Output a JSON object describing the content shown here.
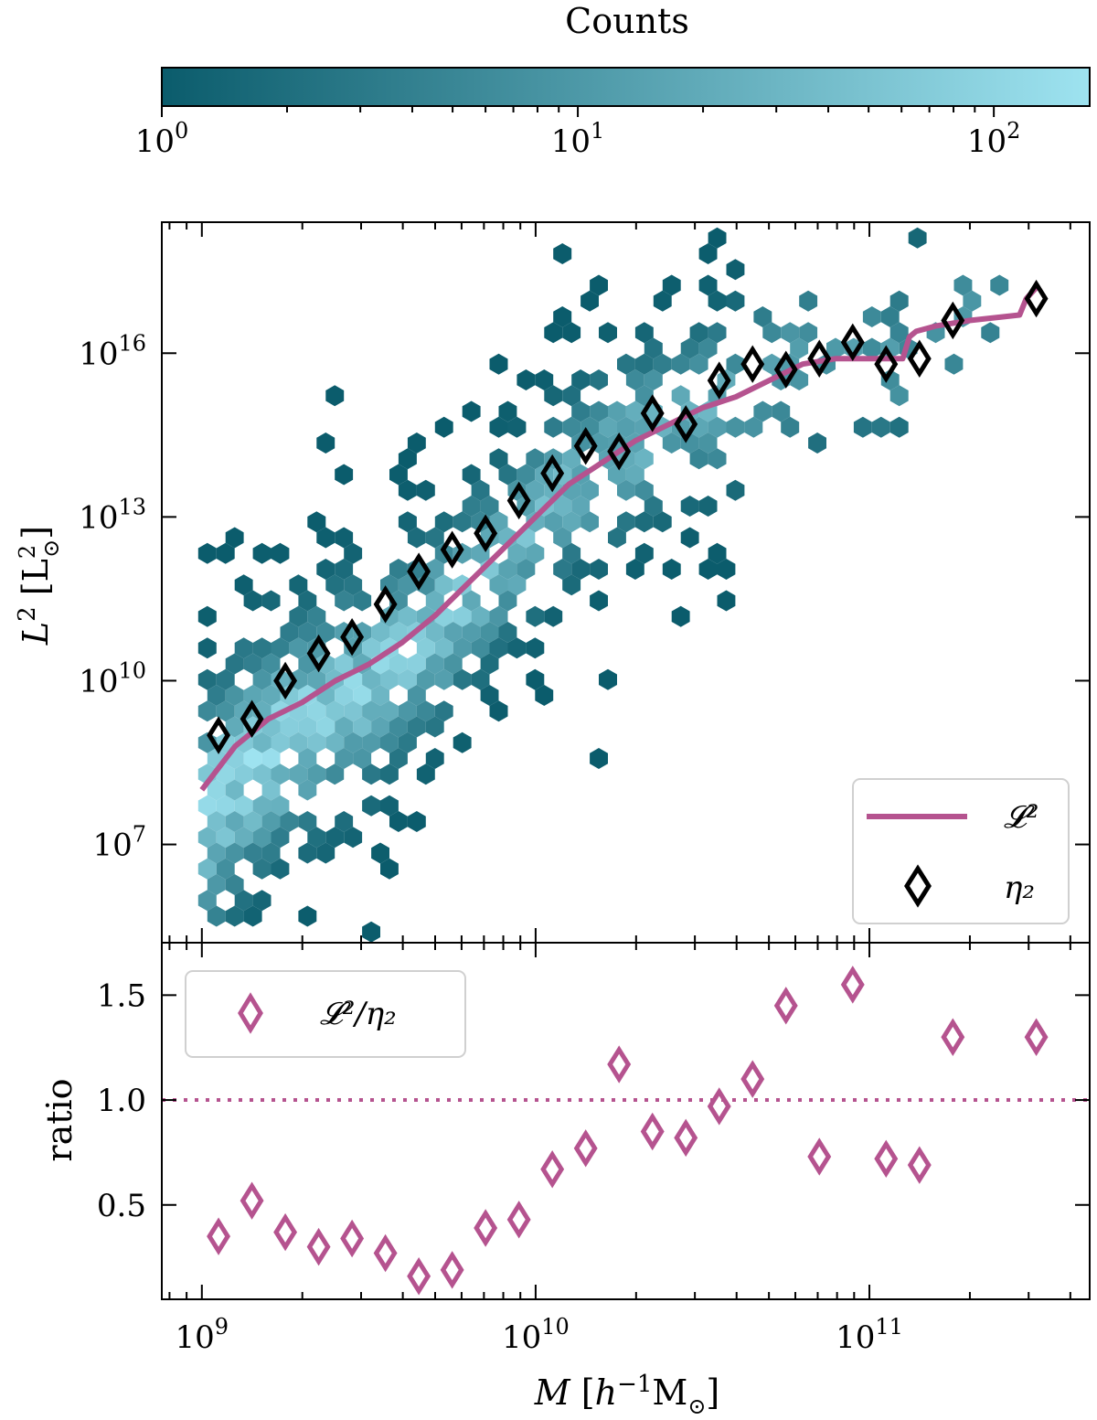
{
  "chart_data": [
    {
      "type": "colorbar",
      "title": "Counts",
      "scale": "log",
      "range": [
        1,
        170
      ],
      "colors": [
        "#0b5c6c",
        "#9ee3f0"
      ],
      "tick_labels": [
        "10^0",
        "10^1",
        "10^2"
      ],
      "tick_values": [
        1,
        10,
        100
      ]
    },
    {
      "type": "hexbin+line+scatter",
      "xlabel": "M [h^-1 M_sun]",
      "ylabel": "L^2 [L_sun^2]",
      "xscale": "log",
      "yscale": "log",
      "xlim_log10": [
        8.88,
        11.66
      ],
      "ylim_log10": [
        5.2,
        18.4
      ],
      "xtick_labels": [
        "10^9",
        "10^10",
        "10^11"
      ],
      "ytick_labels": [
        "10^7",
        "10^10",
        "10^13",
        "10^16"
      ],
      "ytick_values_log10": [
        7,
        10,
        13,
        16
      ],
      "legend": {
        "position": "lower right",
        "entries": [
          "𝓛²",
          "η₂"
        ]
      },
      "series": [
        {
          "name": "𝓛²",
          "kind": "line",
          "color": "#b5538f",
          "log10_x": [
            9.0,
            9.1,
            9.2,
            9.3,
            9.4,
            9.5,
            9.6,
            9.7,
            9.8,
            9.9,
            10.0,
            10.1,
            10.2,
            10.3,
            10.4,
            10.5,
            10.6,
            10.7,
            10.8,
            10.9,
            11.0,
            11.1,
            11.12,
            11.14,
            11.2,
            11.3,
            11.45,
            11.47,
            11.5
          ],
          "log10_y": [
            8.0,
            8.8,
            9.3,
            9.6,
            10.0,
            10.3,
            10.7,
            11.2,
            11.8,
            12.4,
            13.0,
            13.6,
            14.0,
            14.4,
            14.7,
            15.0,
            15.2,
            15.5,
            15.8,
            15.9,
            15.9,
            15.9,
            16.3,
            16.4,
            16.5,
            16.6,
            16.7,
            17.0,
            17.2
          ]
        },
        {
          "name": "η₂",
          "kind": "scatter",
          "marker": "diamond",
          "color": "#000000",
          "log10_x": [
            9.05,
            9.15,
            9.25,
            9.35,
            9.45,
            9.55,
            9.65,
            9.75,
            9.85,
            9.95,
            10.05,
            10.15,
            10.25,
            10.35,
            10.45,
            10.55,
            10.65,
            10.75,
            10.85,
            10.95,
            11.05,
            11.15,
            11.25,
            11.5
          ],
          "log10_y": [
            9.0,
            9.3,
            10.0,
            10.5,
            10.8,
            11.4,
            12.0,
            12.4,
            12.7,
            13.3,
            13.8,
            14.3,
            14.2,
            14.9,
            14.7,
            15.5,
            15.8,
            15.7,
            15.9,
            16.2,
            15.8,
            15.9,
            16.6,
            17.0
          ]
        }
      ]
    },
    {
      "type": "scatter",
      "ylabel": "ratio",
      "xscale": "log",
      "xlim_log10": [
        8.88,
        11.66
      ],
      "ylim": [
        0.05,
        1.75
      ],
      "ytick_labels": [
        "0.5",
        "1.0",
        "1.5"
      ],
      "ytick_values": [
        0.5,
        1.0,
        1.5
      ],
      "reference_line": {
        "y": 1.0,
        "style": "dotted",
        "color": "#b5538f"
      },
      "legend": {
        "position": "upper left",
        "entries": [
          "𝓛²/η₂"
        ]
      },
      "series": [
        {
          "name": "𝓛²/η₂",
          "marker": "diamond",
          "color": "#b5538f",
          "log10_x": [
            9.05,
            9.15,
            9.25,
            9.35,
            9.45,
            9.55,
            9.65,
            9.75,
            9.85,
            9.95,
            10.05,
            10.15,
            10.25,
            10.35,
            10.45,
            10.55,
            10.65,
            10.75,
            10.85,
            10.95,
            11.05,
            11.15,
            11.25,
            11.5
          ],
          "y": [
            0.35,
            0.52,
            0.37,
            0.3,
            0.34,
            0.27,
            0.16,
            0.19,
            0.39,
            0.43,
            0.67,
            0.77,
            1.17,
            0.85,
            0.82,
            0.97,
            1.1,
            1.45,
            0.73,
            1.55,
            0.72,
            0.69,
            1.3,
            1.3
          ]
        }
      ]
    }
  ]
}
